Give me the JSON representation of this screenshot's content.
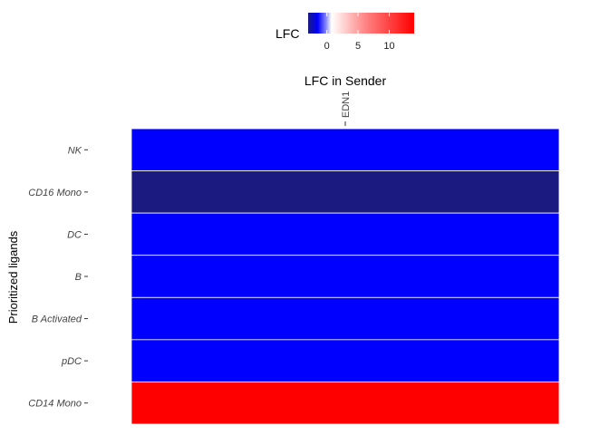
{
  "chart_data": {
    "type": "heatmap",
    "title": "LFC in Sender",
    "xlabel": "",
    "ylabel": "Prioritized ligands",
    "x_categories": [
      "EDN1"
    ],
    "y_categories": [
      "NK",
      "CD16 Mono",
      "DC",
      "B",
      "B Activated",
      "pDC",
      "CD14 Mono"
    ],
    "values": [
      [
        -1.5
      ],
      [
        -3
      ],
      [
        -1.5
      ],
      [
        -1.5
      ],
      [
        -1.5
      ],
      [
        -1.5
      ],
      [
        14
      ]
    ],
    "legend": {
      "title": "LFC",
      "ticks": [
        0,
        5,
        10
      ],
      "range": [
        -3,
        14
      ],
      "placement": "top"
    },
    "colors": {
      "low": "#1a1a80",
      "mid_low": "#0000ff",
      "mid": "#ffffff",
      "high": "#ff0000"
    },
    "grid": false
  }
}
